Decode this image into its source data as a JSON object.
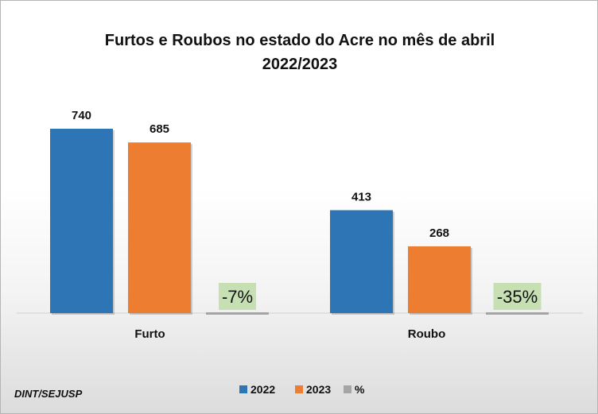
{
  "chart_data": {
    "type": "bar",
    "title_line1": "Furtos e Roubos no estado do Acre no mês de abril",
    "title_line2": "2022/2023",
    "categories": [
      "Furto",
      "Roubo"
    ],
    "series": [
      {
        "name": "2022",
        "values": [
          740,
          413
        ],
        "labels": [
          "740",
          "413"
        ],
        "color": "#2e75b6"
      },
      {
        "name": "2023",
        "values": [
          685,
          268
        ],
        "labels": [
          "685",
          "268"
        ],
        "color": "#ed7d31"
      },
      {
        "name": "%",
        "values": [
          -7,
          -35
        ],
        "labels": [
          "-7%",
          "-35%"
        ],
        "color": "#a5a5a5"
      }
    ],
    "percent_label_background": "#c6e0b4",
    "ylim": [
      0,
      800
    ],
    "grid": false,
    "legend_position": "bottom"
  },
  "source": "DINT/SEJUSP"
}
